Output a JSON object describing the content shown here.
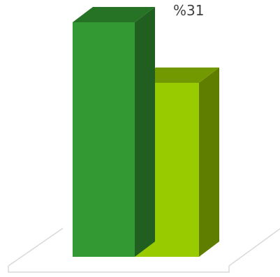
{
  "chart_data": {
    "type": "bar",
    "style": "3d-column",
    "grid": false,
    "legend": "none",
    "ylim": [
      0,
      36
    ],
    "series": [
      {
        "value": 31,
        "label": "%31",
        "color": "#339933"
      },
      {
        "value": 23,
        "label": "",
        "color": "#99cc00"
      }
    ]
  }
}
